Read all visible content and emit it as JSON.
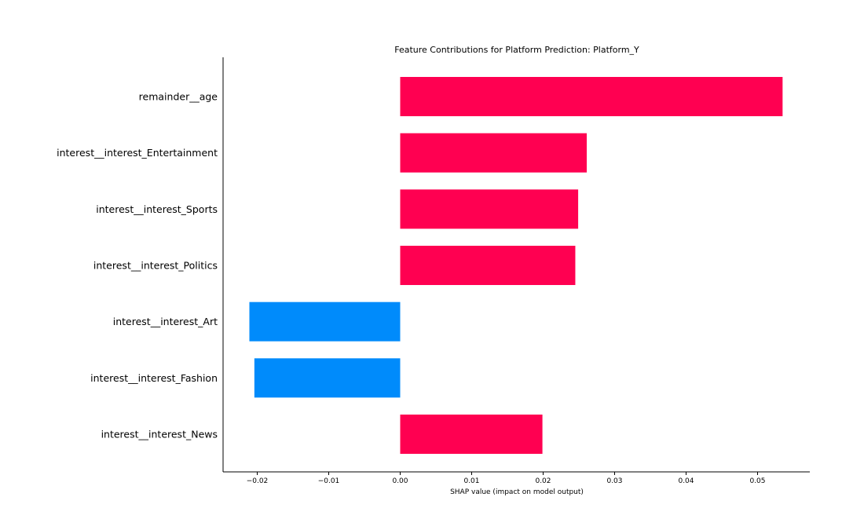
{
  "chart_data": {
    "type": "bar",
    "orientation": "horizontal",
    "title": "Feature Contributions for Platform Prediction: Platform_Y",
    "xlabel": "SHAP value (impact on model output)",
    "ylabel": "",
    "categories": [
      "remainder__age",
      "interest__interest_Entertainment",
      "interest__interest_Sports",
      "interest__interest_Politics",
      "interest__interest_Art",
      "interest__interest_Fashion",
      "interest__interest_News"
    ],
    "values": [
      0.0535,
      0.0261,
      0.0249,
      0.0245,
      -0.0211,
      -0.0204,
      0.0199
    ],
    "xlim": [
      -0.025,
      0.057
    ],
    "xticks": [
      -0.02,
      -0.01,
      0.0,
      0.01,
      0.02,
      0.03,
      0.04,
      0.05
    ],
    "xtick_labels": [
      "−0.02",
      "−0.01",
      "0.00",
      "0.01",
      "0.02",
      "0.03",
      "0.04",
      "0.05"
    ],
    "grid": false,
    "legend": "none",
    "colors": {
      "positive": "#ff0051",
      "negative": "#008bfb",
      "axis": "#000000"
    }
  }
}
